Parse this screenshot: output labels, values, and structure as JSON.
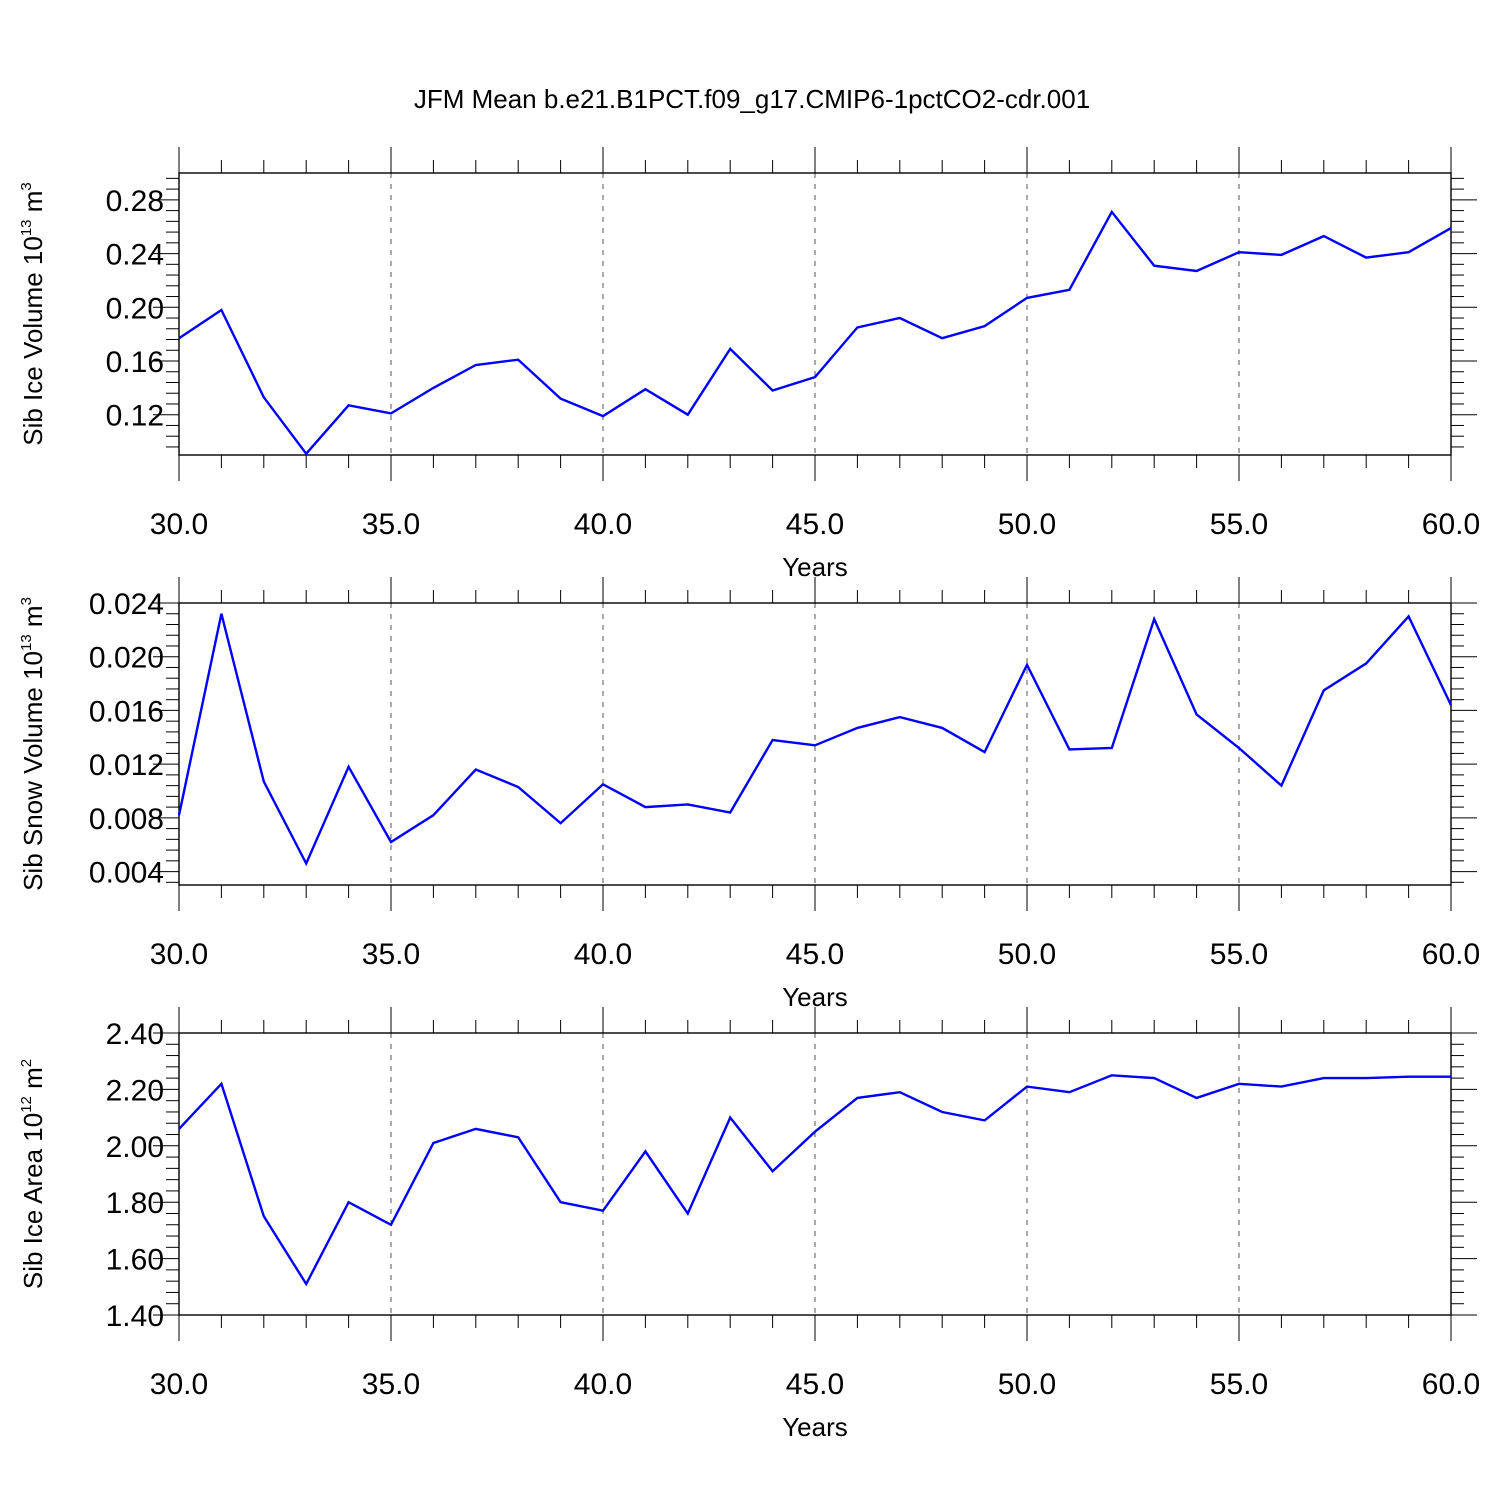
{
  "title": "JFM Mean b.e21.B1PCT.f09_g17.CMIP6-1pctCO2-cdr.001",
  "line_color": "#0000ff",
  "chart_data": [
    {
      "type": "line",
      "ylabel": {
        "text": "Sib Ice Volume 10",
        "exp": "13",
        "unit": " m",
        "unit_exp": "3"
      },
      "xlabel": "Years",
      "xlim": [
        30,
        60
      ],
      "ylim": [
        0.09,
        0.3
      ],
      "x_ticks": [
        30,
        35,
        40,
        45,
        50,
        55,
        60
      ],
      "x_tick_labels": [
        "30.0",
        "35.0",
        "40.0",
        "45.0",
        "50.0",
        "55.0",
        "60.0"
      ],
      "y_ticks": [
        0.12,
        0.16,
        0.2,
        0.24,
        0.28
      ],
      "y_tick_labels": [
        "0.12",
        "0.16",
        "0.20",
        "0.24",
        "0.28"
      ],
      "x": [
        30,
        31,
        32,
        33,
        34,
        35,
        36,
        37,
        38,
        39,
        40,
        41,
        42,
        43,
        44,
        45,
        46,
        47,
        48,
        49,
        50,
        51,
        52,
        53,
        54,
        55,
        56,
        57,
        58,
        59,
        60
      ],
      "series": [
        {
          "values": [
            0.177,
            0.198,
            0.133,
            0.091,
            0.127,
            0.121,
            0.14,
            0.157,
            0.161,
            0.132,
            0.119,
            0.139,
            0.12,
            0.169,
            0.138,
            0.148,
            0.185,
            0.192,
            0.177,
            0.186,
            0.207,
            0.213,
            0.271,
            0.231,
            0.227,
            0.241,
            0.239,
            0.253,
            0.237,
            0.241,
            0.259
          ]
        }
      ]
    },
    {
      "type": "line",
      "ylabel": {
        "text": "Sib Snow Volume 10",
        "exp": "13",
        "unit": " m",
        "unit_exp": "3"
      },
      "xlabel": "Years",
      "xlim": [
        30,
        60
      ],
      "ylim": [
        0.003,
        0.024
      ],
      "x_ticks": [
        30,
        35,
        40,
        45,
        50,
        55,
        60
      ],
      "x_tick_labels": [
        "30.0",
        "35.0",
        "40.0",
        "45.0",
        "50.0",
        "55.0",
        "60.0"
      ],
      "y_ticks": [
        0.004,
        0.008,
        0.012,
        0.016,
        0.02,
        0.024
      ],
      "y_tick_labels": [
        "0.004",
        "0.008",
        "0.012",
        "0.016",
        "0.020",
        "0.024"
      ],
      "x": [
        30,
        31,
        32,
        33,
        34,
        35,
        36,
        37,
        38,
        39,
        40,
        41,
        42,
        43,
        44,
        45,
        46,
        47,
        48,
        49,
        50,
        51,
        52,
        53,
        54,
        55,
        56,
        57,
        58,
        59,
        60
      ],
      "series": [
        {
          "values": [
            0.0082,
            0.0232,
            0.0107,
            0.0046,
            0.0118,
            0.0062,
            0.0082,
            0.0116,
            0.0103,
            0.0076,
            0.0105,
            0.0088,
            0.009,
            0.0084,
            0.0138,
            0.0134,
            0.0147,
            0.0155,
            0.0147,
            0.0129,
            0.0194,
            0.0131,
            0.0132,
            0.0228,
            0.0157,
            0.0132,
            0.0104,
            0.0175,
            0.0195,
            0.023,
            0.0164
          ]
        }
      ]
    },
    {
      "type": "line",
      "ylabel": {
        "text": "Sib Ice Area 10",
        "exp": "12",
        "unit": " m",
        "unit_exp": "2"
      },
      "xlabel": "Years",
      "xlim": [
        30,
        60
      ],
      "ylim": [
        1.4,
        2.4
      ],
      "x_ticks": [
        30,
        35,
        40,
        45,
        50,
        55,
        60
      ],
      "x_tick_labels": [
        "30.0",
        "35.0",
        "40.0",
        "45.0",
        "50.0",
        "55.0",
        "60.0"
      ],
      "y_ticks": [
        1.4,
        1.6,
        1.8,
        2.0,
        2.2,
        2.4
      ],
      "y_tick_labels": [
        "1.40",
        "1.60",
        "1.80",
        "2.00",
        "2.20",
        "2.40"
      ],
      "x": [
        30,
        31,
        32,
        33,
        34,
        35,
        36,
        37,
        38,
        39,
        40,
        41,
        42,
        43,
        44,
        45,
        46,
        47,
        48,
        49,
        50,
        51,
        52,
        53,
        54,
        55,
        56,
        57,
        58,
        59,
        60
      ],
      "series": [
        {
          "values": [
            2.06,
            2.22,
            1.75,
            1.51,
            1.8,
            1.72,
            2.01,
            2.06,
            2.03,
            1.8,
            1.77,
            1.98,
            1.76,
            2.1,
            1.91,
            2.05,
            2.17,
            2.19,
            2.12,
            2.09,
            2.21,
            2.19,
            2.25,
            2.24,
            2.17,
            2.22,
            2.21,
            2.24,
            2.24,
            2.245,
            2.245
          ]
        }
      ]
    }
  ]
}
